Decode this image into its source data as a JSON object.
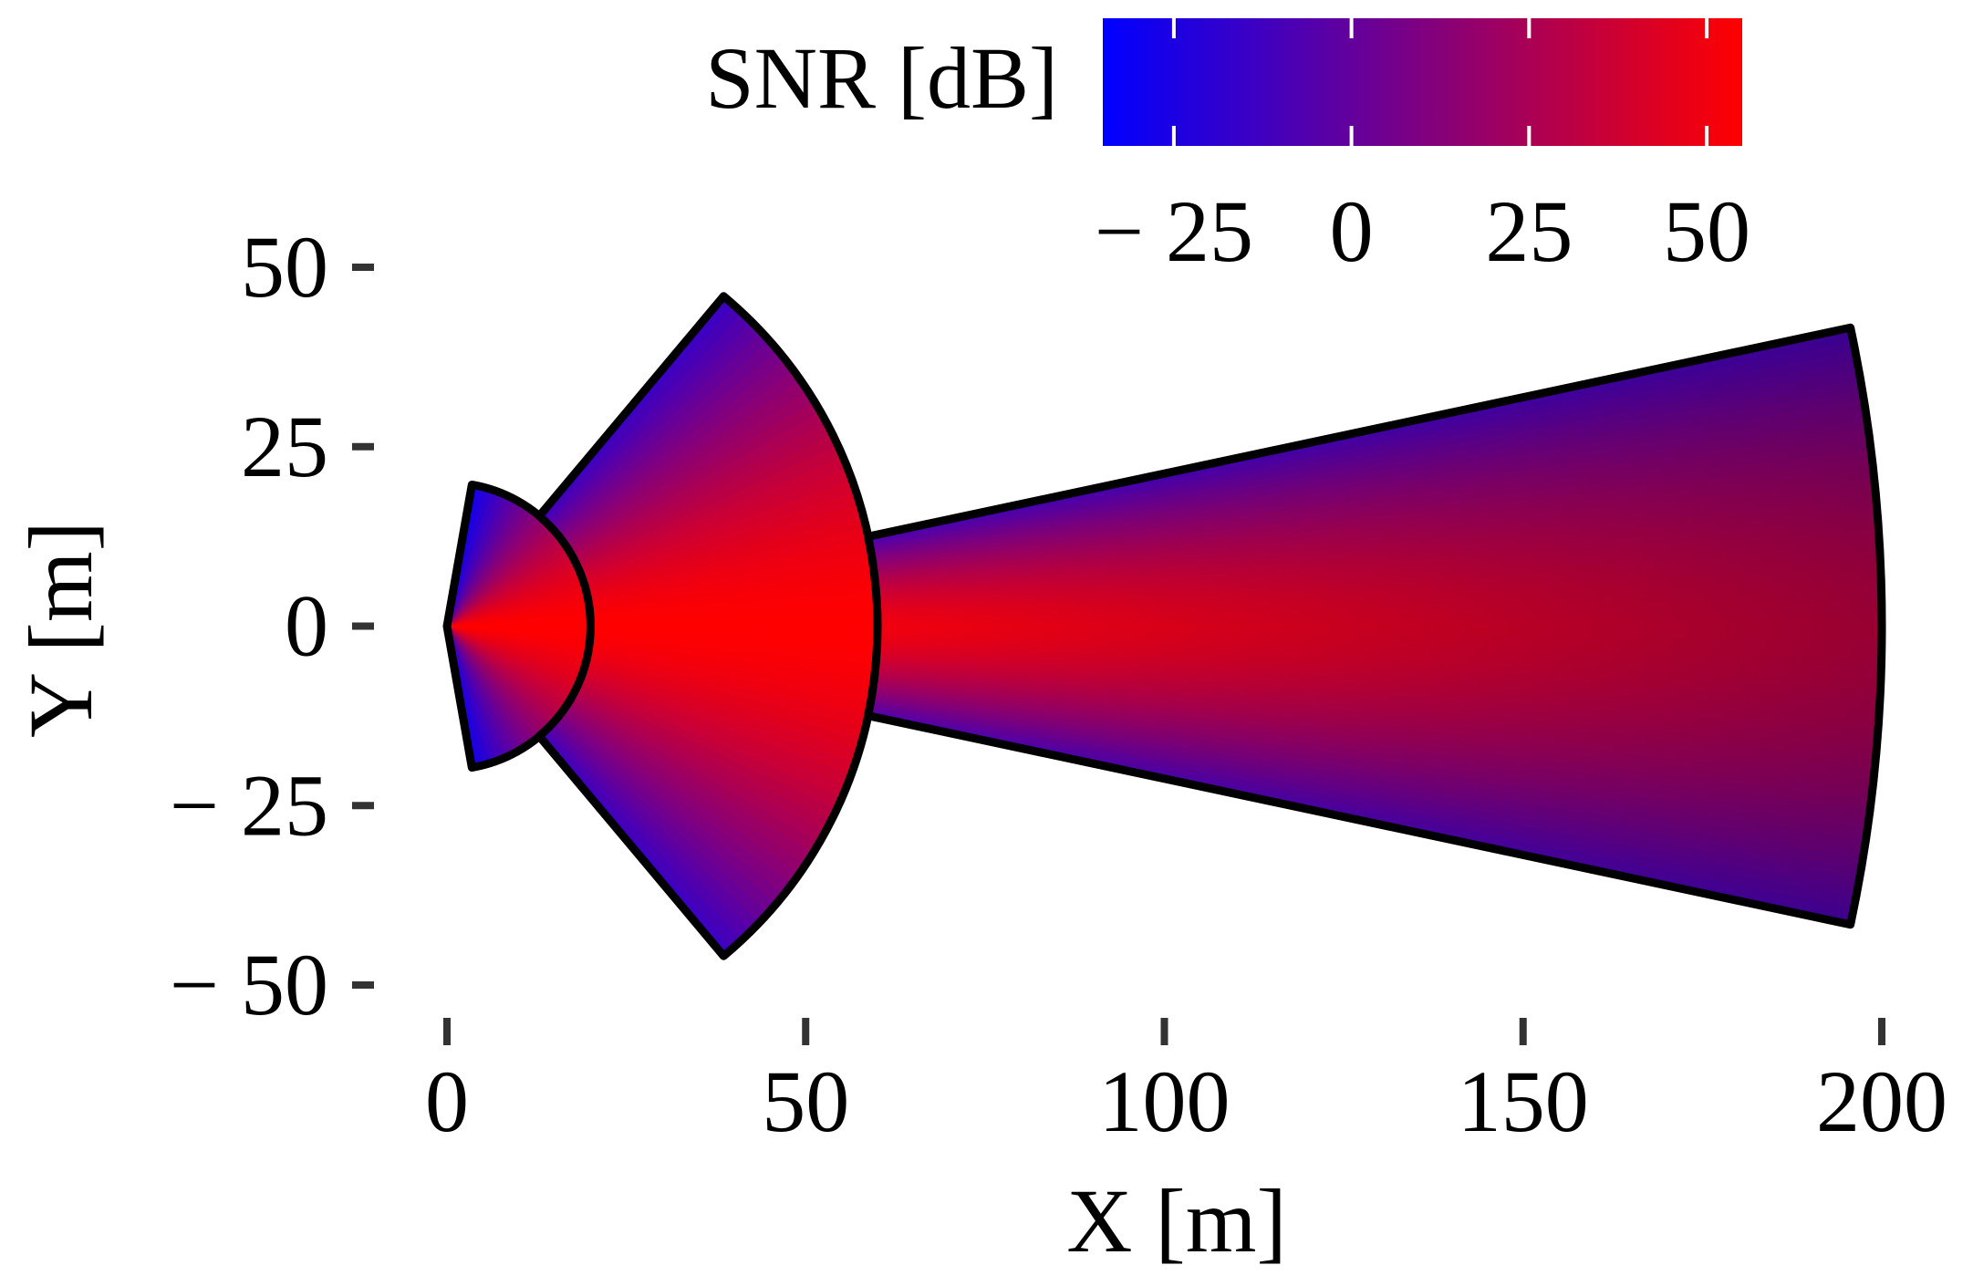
{
  "chart_data": {
    "type": "heatmap",
    "title": "",
    "xlabel": "X [m]",
    "ylabel": "Y [m]",
    "xlim": [
      0,
      200
    ],
    "ylim": [
      -50,
      50
    ],
    "x_ticks": [
      {
        "value": 0,
        "label": "0"
      },
      {
        "value": 50,
        "label": "50"
      },
      {
        "value": 100,
        "label": "100"
      },
      {
        "value": 150,
        "label": "150"
      },
      {
        "value": 200,
        "label": "200"
      }
    ],
    "y_ticks": [
      {
        "value": 50,
        "label": "50"
      },
      {
        "value": 25,
        "label": "25"
      },
      {
        "value": 0,
        "label": "0"
      },
      {
        "value": -25,
        "label": "− 25"
      },
      {
        "value": -50,
        "label": "− 50"
      }
    ],
    "grid": false,
    "colorbar": {
      "label": "SNR [dB]",
      "orientation": "horizontal",
      "placement": "top",
      "range": [
        -35,
        55
      ],
      "colormap": [
        "#0000ff",
        "#ff0000"
      ],
      "ticks": [
        {
          "value": -25,
          "label": "− 25"
        },
        {
          "value": 0,
          "label": "0"
        },
        {
          "value": 25,
          "label": "25"
        },
        {
          "value": 50,
          "label": "50"
        }
      ]
    },
    "sectors": [
      {
        "id": "near",
        "apex": [
          0,
          0
        ],
        "inner_radius": 0,
        "outer_radius": 20,
        "half_angle_deg": 80,
        "snr_peak_db": 55,
        "snr_edge_db": -30
      },
      {
        "id": "middle",
        "apex": [
          0,
          0
        ],
        "inner_radius": 20,
        "outer_radius": 60,
        "half_angle_deg": 50,
        "snr_peak_db": 55,
        "snr_edge_db": -15
      },
      {
        "id": "far",
        "apex": [
          0,
          0
        ],
        "inner_radius": 60,
        "outer_radius": 200,
        "half_angle_deg": 12,
        "snr_peak_db": 50,
        "snr_edge_db": -10
      }
    ],
    "outline_color": "#000000"
  }
}
